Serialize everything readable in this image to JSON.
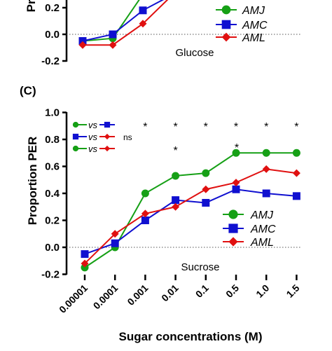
{
  "colors": {
    "AMJ": "#16a016",
    "AMC": "#1010d0",
    "AML": "#e01010"
  },
  "chart_data": [
    {
      "type": "line",
      "panel": "top",
      "annotation": "Glucose",
      "ylabel": "Prop",
      "ylim": [
        -0.2,
        0.3
      ],
      "yticks": [
        "0.2",
        "0.0",
        "-0.2"
      ],
      "categories": [
        "0.00001",
        "0.0001",
        "0.001",
        "0.01",
        "0.1"
      ],
      "series": [
        {
          "name": "AMJ",
          "marker": "circle",
          "values": [
            -0.05,
            -0.03,
            0.3,
            null,
            null
          ]
        },
        {
          "name": "AMC",
          "marker": "square",
          "values": [
            -0.05,
            0.0,
            0.18,
            0.3,
            null
          ]
        },
        {
          "name": "AML",
          "marker": "diamond",
          "values": [
            -0.08,
            -0.08,
            0.08,
            0.3,
            0.3
          ]
        }
      ],
      "legend": [
        "AMJ",
        "AMC",
        "AML"
      ],
      "legend_position": "bottom-right"
    },
    {
      "type": "line",
      "panel_label": "(C)",
      "annotation": "Sucrose",
      "xlabel": "Sugar concentrations (M)",
      "ylabel": "Proportion PER",
      "ylim": [
        -0.2,
        1.0
      ],
      "yticks": [
        "1.0",
        "0.8",
        "0.6",
        "0.4",
        "0.2",
        "0.0",
        "-0.2"
      ],
      "categories": [
        "0.00001",
        "0.0001",
        "0.001",
        "0.01",
        "0.1",
        "0.5",
        "1.0",
        "1.5"
      ],
      "series": [
        {
          "name": "AMJ",
          "marker": "circle",
          "values": [
            -0.15,
            0.0,
            0.4,
            0.53,
            0.55,
            0.7,
            0.7,
            0.7
          ]
        },
        {
          "name": "AMC",
          "marker": "square",
          "values": [
            -0.05,
            0.03,
            0.2,
            0.35,
            0.33,
            0.43,
            0.4,
            0.38
          ]
        },
        {
          "name": "AML",
          "marker": "diamond",
          "values": [
            -0.12,
            0.1,
            0.25,
            0.3,
            0.43,
            0.48,
            0.58,
            0.55
          ]
        }
      ],
      "legend": [
        "AMJ",
        "AMC",
        "AML"
      ],
      "legend_position": "bottom-right",
      "comparisons": [
        {
          "a": "AMJ",
          "b": "AMC",
          "sep": "vs",
          "result": "",
          "stars": [
            "",
            "",
            "*",
            "*",
            "*",
            "*",
            "*",
            "*"
          ]
        },
        {
          "a": "AMC",
          "b": "AML",
          "sep": "vs",
          "result": "ns",
          "stars": [
            "",
            "",
            "",
            "",
            "",
            "",
            "",
            ""
          ]
        },
        {
          "a": "AMJ",
          "b": "AML",
          "sep": "vs",
          "result": "",
          "stars": [
            "",
            "",
            "",
            "*",
            "",
            "*",
            "",
            ""
          ]
        }
      ]
    }
  ]
}
